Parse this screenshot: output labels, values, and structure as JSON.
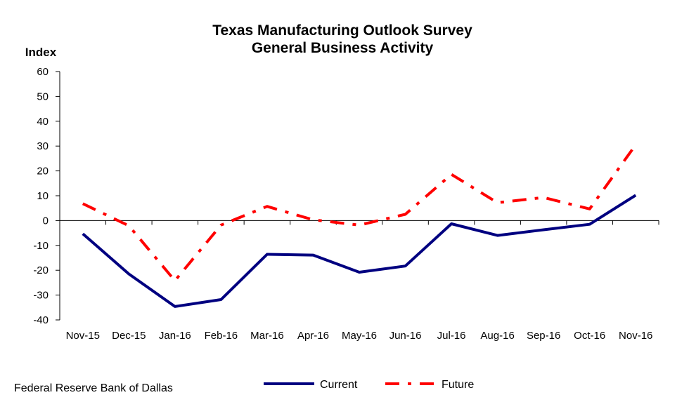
{
  "chart_data": {
    "type": "line",
    "title": "Texas Manufacturing Outlook Survey",
    "subtitle": "General Business Activity",
    "ylabel": "Index",
    "xlabel": "",
    "ylim": [
      -40,
      60
    ],
    "yticks": [
      "60",
      "50",
      "40",
      "30",
      "20",
      "10",
      "0",
      "-10",
      "-20",
      "-30",
      "-40"
    ],
    "categories": [
      "Nov-15",
      "Dec-15",
      "Jan-16",
      "Feb-16",
      "Mar-16",
      "Apr-16",
      "May-16",
      "Jun-16",
      "Jul-16",
      "Aug-16",
      "Sep-16",
      "Oct-16",
      "Nov-16"
    ],
    "series": [
      {
        "name": "Current",
        "color": "#000080",
        "style": "solid",
        "values": [
          -5.3,
          -21.5,
          -34.6,
          -31.8,
          -13.6,
          -13.9,
          -20.8,
          -18.3,
          -1.3,
          -6.0,
          -3.7,
          -1.5,
          10.2
        ]
      },
      {
        "name": "Future",
        "color": "#ff0000",
        "style": "dash-dot",
        "values": [
          6.8,
          -2.1,
          -24.2,
          -1.8,
          5.7,
          0.3,
          -1.8,
          2.5,
          18.6,
          7.2,
          9.3,
          4.7,
          30.5
        ]
      }
    ],
    "legend_position": "bottom-center",
    "grid": false
  },
  "source": "Federal Reserve Bank of Dallas"
}
